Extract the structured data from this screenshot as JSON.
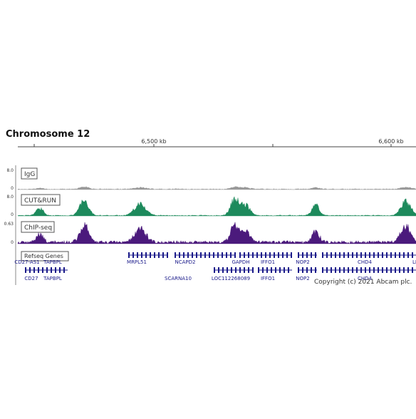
{
  "title": "Chromosome 12",
  "ruler": {
    "ticks": [
      "6,500 kb",
      "6,600 kb"
    ]
  },
  "tracks": [
    {
      "name": "IgG",
      "max": "8.0",
      "min": "0"
    },
    {
      "name": "CUT&RUN",
      "max": "8.0",
      "min": "0"
    },
    {
      "name": "ChIP-seq",
      "max": "0.63",
      "min": "0"
    }
  ],
  "genes": {
    "name": "Refseq Genes",
    "row1": [
      "CD27-AS1",
      "TAPBPL",
      "MRPL51",
      "NCAPD2",
      "GAPDH",
      "IFFO1",
      "NOP2",
      "CHD4",
      "LI"
    ],
    "row2": [
      "CD27",
      "TAPBPL",
      "SCARNA10",
      "LOC112268089",
      "IFFO1",
      "NOP2",
      "CHD4"
    ]
  },
  "copyright": "Copyright (c) 2021 Abcam plc."
}
